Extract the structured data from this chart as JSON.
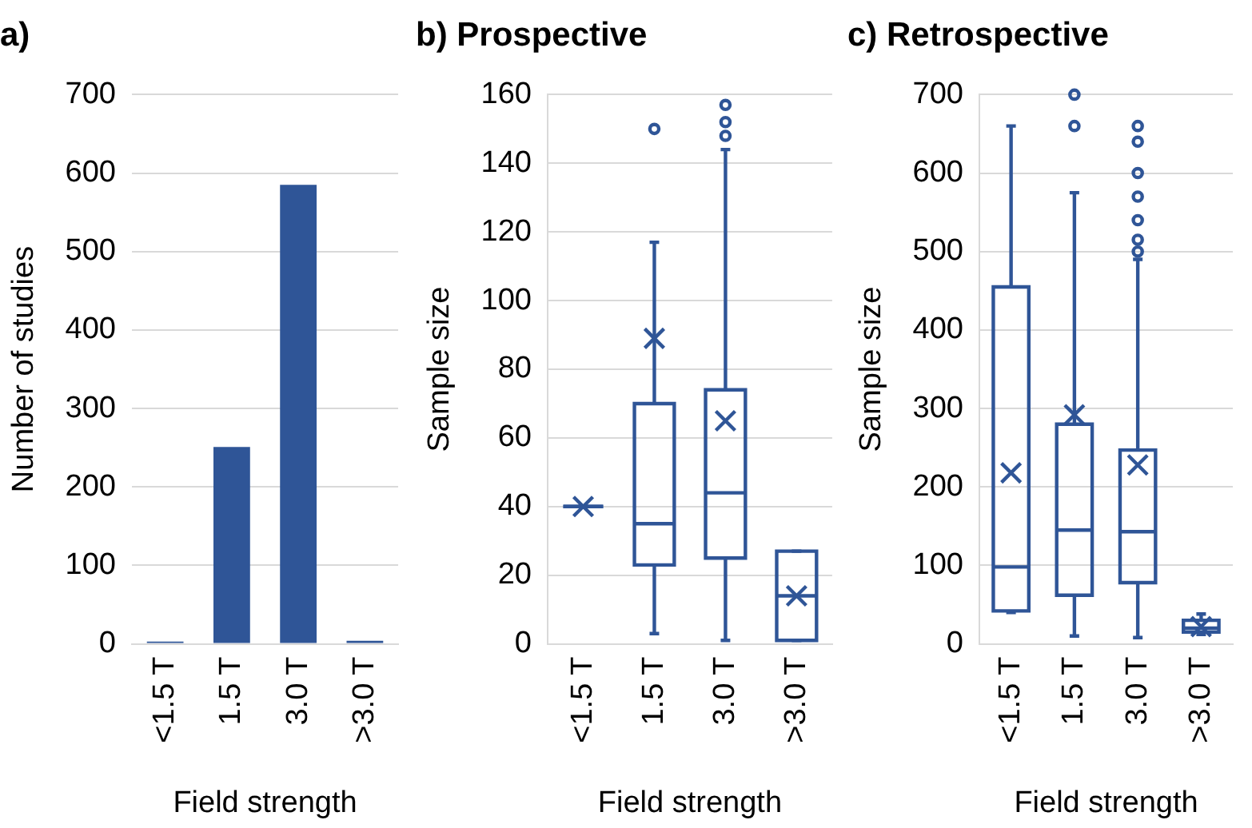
{
  "chart_data": [
    {
      "type": "bar",
      "title": "a)",
      "xlabel": "Field strength",
      "ylabel": "Number of studies",
      "categories": [
        "<1.5 T",
        "1.5 T",
        "3.0 T",
        ">3.0 T"
      ],
      "values": [
        3,
        251,
        585,
        4
      ],
      "color": "#2f5597",
      "ylim": [
        0,
        700
      ],
      "yticks": [
        0,
        100,
        200,
        300,
        400,
        500,
        600,
        700
      ],
      "grid": "y"
    },
    {
      "type": "box",
      "title": "b) Prospective",
      "xlabel": "Field strength",
      "ylabel": "Sample size",
      "categories": [
        "<1.5 T",
        "1.5 T",
        "3.0 T",
        ">3.0 T"
      ],
      "color": "#2f5597",
      "ylim": [
        0,
        160
      ],
      "yticks": [
        0,
        20,
        40,
        60,
        80,
        100,
        120,
        140,
        160
      ],
      "grid": "y",
      "boxes": [
        {
          "low": 40,
          "q1": 40,
          "median": 40,
          "q3": 40,
          "high": 40,
          "mean": 40
        },
        {
          "low": 3,
          "q1": 23,
          "median": 35,
          "q3": 70,
          "high": 117,
          "mean": 89,
          "outliers": [
            150
          ]
        },
        {
          "low": 1,
          "q1": 25,
          "median": 44,
          "q3": 74,
          "high": 144,
          "mean": 65,
          "outliers": [
            148,
            152,
            157
          ]
        },
        {
          "low": 1,
          "q1": 1,
          "median": 14,
          "q3": 27,
          "high": 27,
          "mean": 14
        }
      ]
    },
    {
      "type": "box",
      "title": "c) Retrospective",
      "xlabel": "Field strength",
      "ylabel": "Sample size",
      "categories": [
        "<1.5 T",
        "1.5 T",
        "3.0 T",
        ">3.0 T"
      ],
      "color": "#2f5597",
      "ylim": [
        0,
        700
      ],
      "yticks": [
        0,
        100,
        200,
        300,
        400,
        500,
        600,
        700
      ],
      "grid": "y",
      "boxes": [
        {
          "low": 40,
          "q1": 42,
          "median": 98,
          "q3": 455,
          "high": 660,
          "mean": 218
        },
        {
          "low": 10,
          "q1": 62,
          "median": 145,
          "q3": 280,
          "high": 575,
          "mean": 292,
          "outliers": [
            660,
            700
          ]
        },
        {
          "low": 8,
          "q1": 78,
          "median": 143,
          "q3": 247,
          "high": 490,
          "mean": 228,
          "outliers": [
            500,
            515,
            540,
            570,
            600,
            640,
            660
          ]
        },
        {
          "low": 12,
          "q1": 15,
          "median": 20,
          "q3": 30,
          "high": 38,
          "mean": 22
        }
      ]
    }
  ]
}
